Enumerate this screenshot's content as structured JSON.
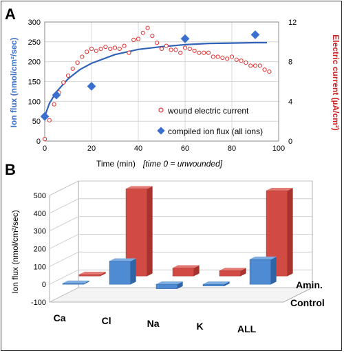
{
  "panels": {
    "a": {
      "label": "A"
    },
    "b": {
      "label": "B"
    }
  },
  "colors": {
    "ion_flux_axis": "#3a72c4",
    "electric_axis": "#cc2222",
    "fit_line": "#2f62b8",
    "diamond": "#3a6fd0",
    "circle": "#e03030",
    "bar_amiloride": "#d24a44",
    "bar_control": "#4f8bd2"
  },
  "chart_data": [
    {
      "type": "scatter",
      "title": "",
      "xlabel": "Time (min)",
      "xlabel_note": "[time 0 = unwounded]",
      "ylabel_left": "Ion flux (nmol/cm²/sec)",
      "ylabel_right": "Electric current (µA/cm²)",
      "xlim": [
        0,
        100
      ],
      "ylim_left": [
        0,
        300
      ],
      "ylim_right": [
        0,
        12
      ],
      "x_ticks": [
        "0",
        "20",
        "40",
        "60",
        "80",
        "100"
      ],
      "y_ticks_left": [
        "0",
        "50",
        "100",
        "150",
        "200",
        "250",
        "300"
      ],
      "y_ticks_right": [
        "0",
        "4",
        "8",
        "12"
      ],
      "legend_position": "bottom-right",
      "series": [
        {
          "name": "wound electric current",
          "axis": "right",
          "marker": "circle",
          "x": [
            0,
            2,
            4,
            6,
            8,
            10,
            12,
            14,
            16,
            18,
            20,
            22,
            24,
            26,
            28,
            30,
            32,
            34,
            36,
            38,
            40,
            42,
            44,
            46,
            48,
            50,
            52,
            54,
            56,
            58,
            60,
            62,
            64,
            66,
            68,
            70,
            72,
            74,
            76,
            78,
            80,
            82,
            84,
            86,
            88,
            90,
            92,
            94,
            96
          ],
          "values": [
            0.2,
            2.1,
            3.7,
            4.9,
            5.9,
            6.6,
            7.3,
            7.9,
            8.5,
            9.0,
            9.3,
            9.1,
            9.3,
            9.5,
            9.3,
            9.4,
            9.3,
            9.6,
            8.9,
            10.2,
            10.3,
            10.9,
            11.4,
            10.6,
            9.9,
            9.3,
            9.6,
            9.2,
            9.2,
            8.9,
            9.4,
            9.3,
            9.1,
            8.9,
            8.9,
            8.9,
            8.5,
            8.5,
            8.4,
            8.3,
            8.5,
            8.2,
            8.1,
            7.9,
            7.6,
            7.6,
            7.6,
            7.2,
            7.0
          ]
        },
        {
          "name": "compiled ion flux (all ions)",
          "axis": "left",
          "marker": "diamond",
          "x": [
            0,
            5,
            20,
            60,
            90
          ],
          "values": [
            62,
            116,
            138,
            258,
            268
          ]
        },
        {
          "name": "fit",
          "axis": "left",
          "marker": "line",
          "x": [
            0,
            2,
            5,
            10,
            15,
            20,
            30,
            40,
            50,
            60,
            70,
            80,
            90,
            95
          ],
          "values": [
            62,
            95,
            124,
            157,
            180,
            196,
            218,
            231,
            238,
            243,
            246,
            247,
            248,
            248
          ]
        }
      ]
    },
    {
      "type": "bar",
      "title": "",
      "ylabel": "Ion flux (nmol/cm²/sec)",
      "ylim": [
        -100,
        500
      ],
      "y_ticks": [
        "-100",
        "0",
        "100",
        "200",
        "300",
        "400",
        "500"
      ],
      "categories": [
        "Ca",
        "Cl",
        "Na",
        "K",
        "ALL"
      ],
      "series": [
        {
          "name": "Control",
          "values": [
            5,
            130,
            -25,
            -10,
            140
          ]
        },
        {
          "name": "Amin.",
          "values": [
            8,
            490,
            45,
            30,
            480
          ]
        }
      ]
    }
  ]
}
